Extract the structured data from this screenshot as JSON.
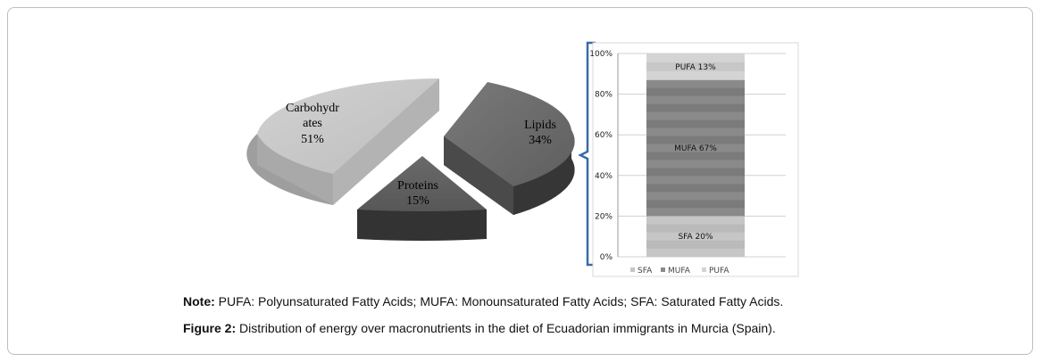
{
  "chart_data": [
    {
      "type": "pie",
      "subtype": "3d-exploded",
      "slices": [
        {
          "label_line1": "Carbohydr",
          "label_line2": "ates",
          "label": "Carbohydrates",
          "value": 51,
          "value_text": "51%",
          "color": "#c8c8c8"
        },
        {
          "label_line1": "Lipids",
          "label": "Lipids",
          "value": 34,
          "value_text": "34%",
          "color": "#6e6e6e"
        },
        {
          "label_line1": "Proteins",
          "label": "Proteins",
          "value": 15,
          "value_text": "15%",
          "color": "#555555"
        }
      ]
    },
    {
      "type": "bar",
      "subtype": "100%-stacked",
      "y_ticks": [
        "0%",
        "20%",
        "40%",
        "60%",
        "80%",
        "100%"
      ],
      "ylim": [
        0,
        100
      ],
      "grid": true,
      "segments": [
        {
          "name": "SFA",
          "value": 20,
          "label": "SFA  20%",
          "color": "#c6c6c6"
        },
        {
          "name": "MUFA",
          "value": 67,
          "label": "MUFA 67%",
          "color": "#8a8a8a"
        },
        {
          "name": "PUFA",
          "value": 13,
          "label": "PUFA 13%",
          "color": "#d4d4d4"
        }
      ],
      "legend": [
        "SFA",
        "MUFA",
        "PUFA"
      ],
      "legend_position": "bottom"
    }
  ],
  "caption": {
    "note_bold": "Note:",
    "note_text": " PUFA: Polyunsaturated Fatty Acids; MUFA: Monounsaturated Fatty Acids; SFA: Saturated Fatty Acids.",
    "figure_bold": "Figure 2:",
    "figure_text": " Distribution of energy over macronutrients in the diet of Ecuadorian immigrants in Murcia (Spain)."
  }
}
